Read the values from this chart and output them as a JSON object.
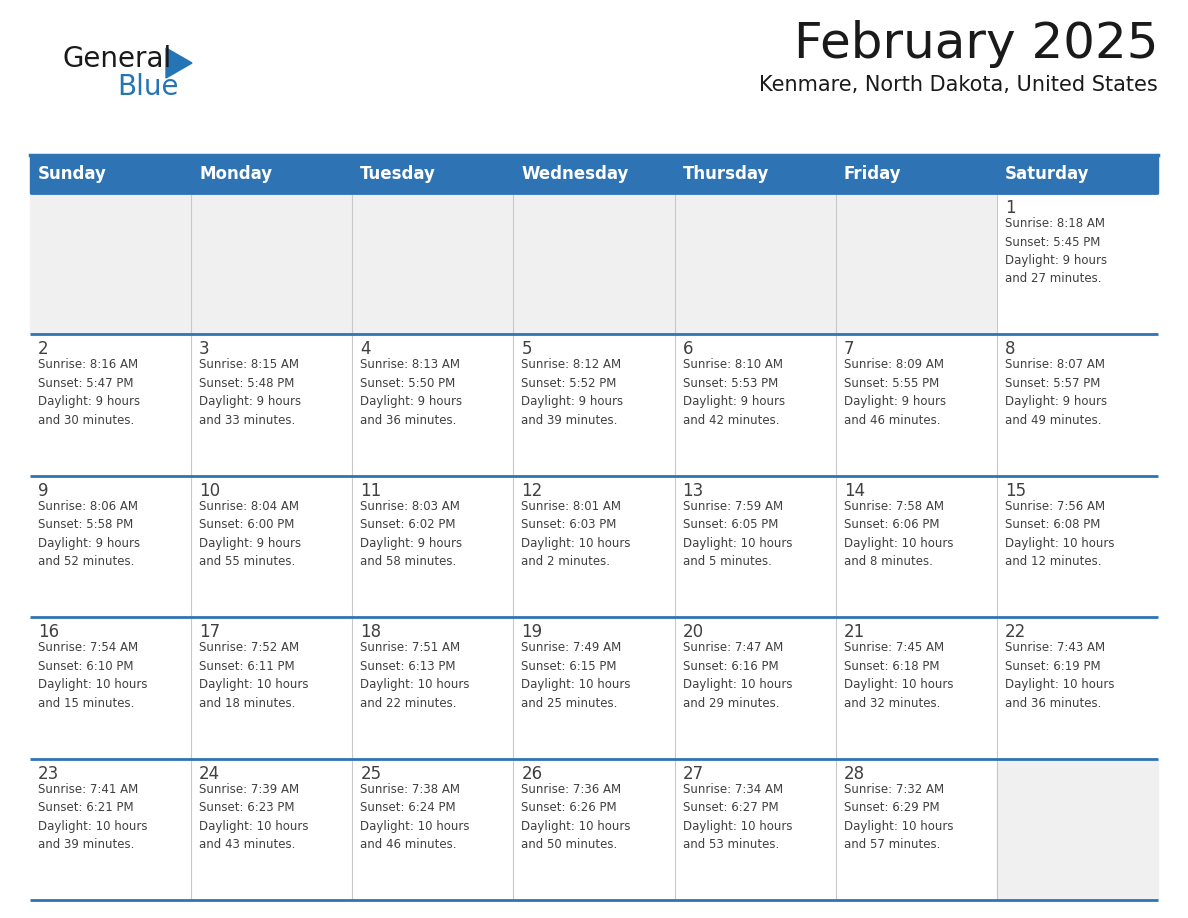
{
  "title": "February 2025",
  "subtitle": "Kenmare, North Dakota, United States",
  "header_bg": "#2e74b5",
  "header_text": "#ffffff",
  "row_bg_light": "#f0f0f0",
  "row_bg_white": "#ffffff",
  "border_color": "#2e74b5",
  "text_color": "#404040",
  "day_headers": [
    "Sunday",
    "Monday",
    "Tuesday",
    "Wednesday",
    "Thursday",
    "Friday",
    "Saturday"
  ],
  "calendar_data": [
    [
      {
        "day": "",
        "info": ""
      },
      {
        "day": "",
        "info": ""
      },
      {
        "day": "",
        "info": ""
      },
      {
        "day": "",
        "info": ""
      },
      {
        "day": "",
        "info": ""
      },
      {
        "day": "",
        "info": ""
      },
      {
        "day": "1",
        "info": "Sunrise: 8:18 AM\nSunset: 5:45 PM\nDaylight: 9 hours\nand 27 minutes."
      }
    ],
    [
      {
        "day": "2",
        "info": "Sunrise: 8:16 AM\nSunset: 5:47 PM\nDaylight: 9 hours\nand 30 minutes."
      },
      {
        "day": "3",
        "info": "Sunrise: 8:15 AM\nSunset: 5:48 PM\nDaylight: 9 hours\nand 33 minutes."
      },
      {
        "day": "4",
        "info": "Sunrise: 8:13 AM\nSunset: 5:50 PM\nDaylight: 9 hours\nand 36 minutes."
      },
      {
        "day": "5",
        "info": "Sunrise: 8:12 AM\nSunset: 5:52 PM\nDaylight: 9 hours\nand 39 minutes."
      },
      {
        "day": "6",
        "info": "Sunrise: 8:10 AM\nSunset: 5:53 PM\nDaylight: 9 hours\nand 42 minutes."
      },
      {
        "day": "7",
        "info": "Sunrise: 8:09 AM\nSunset: 5:55 PM\nDaylight: 9 hours\nand 46 minutes."
      },
      {
        "day": "8",
        "info": "Sunrise: 8:07 AM\nSunset: 5:57 PM\nDaylight: 9 hours\nand 49 minutes."
      }
    ],
    [
      {
        "day": "9",
        "info": "Sunrise: 8:06 AM\nSunset: 5:58 PM\nDaylight: 9 hours\nand 52 minutes."
      },
      {
        "day": "10",
        "info": "Sunrise: 8:04 AM\nSunset: 6:00 PM\nDaylight: 9 hours\nand 55 minutes."
      },
      {
        "day": "11",
        "info": "Sunrise: 8:03 AM\nSunset: 6:02 PM\nDaylight: 9 hours\nand 58 minutes."
      },
      {
        "day": "12",
        "info": "Sunrise: 8:01 AM\nSunset: 6:03 PM\nDaylight: 10 hours\nand 2 minutes."
      },
      {
        "day": "13",
        "info": "Sunrise: 7:59 AM\nSunset: 6:05 PM\nDaylight: 10 hours\nand 5 minutes."
      },
      {
        "day": "14",
        "info": "Sunrise: 7:58 AM\nSunset: 6:06 PM\nDaylight: 10 hours\nand 8 minutes."
      },
      {
        "day": "15",
        "info": "Sunrise: 7:56 AM\nSunset: 6:08 PM\nDaylight: 10 hours\nand 12 minutes."
      }
    ],
    [
      {
        "day": "16",
        "info": "Sunrise: 7:54 AM\nSunset: 6:10 PM\nDaylight: 10 hours\nand 15 minutes."
      },
      {
        "day": "17",
        "info": "Sunrise: 7:52 AM\nSunset: 6:11 PM\nDaylight: 10 hours\nand 18 minutes."
      },
      {
        "day": "18",
        "info": "Sunrise: 7:51 AM\nSunset: 6:13 PM\nDaylight: 10 hours\nand 22 minutes."
      },
      {
        "day": "19",
        "info": "Sunrise: 7:49 AM\nSunset: 6:15 PM\nDaylight: 10 hours\nand 25 minutes."
      },
      {
        "day": "20",
        "info": "Sunrise: 7:47 AM\nSunset: 6:16 PM\nDaylight: 10 hours\nand 29 minutes."
      },
      {
        "day": "21",
        "info": "Sunrise: 7:45 AM\nSunset: 6:18 PM\nDaylight: 10 hours\nand 32 minutes."
      },
      {
        "day": "22",
        "info": "Sunrise: 7:43 AM\nSunset: 6:19 PM\nDaylight: 10 hours\nand 36 minutes."
      }
    ],
    [
      {
        "day": "23",
        "info": "Sunrise: 7:41 AM\nSunset: 6:21 PM\nDaylight: 10 hours\nand 39 minutes."
      },
      {
        "day": "24",
        "info": "Sunrise: 7:39 AM\nSunset: 6:23 PM\nDaylight: 10 hours\nand 43 minutes."
      },
      {
        "day": "25",
        "info": "Sunrise: 7:38 AM\nSunset: 6:24 PM\nDaylight: 10 hours\nand 46 minutes."
      },
      {
        "day": "26",
        "info": "Sunrise: 7:36 AM\nSunset: 6:26 PM\nDaylight: 10 hours\nand 50 minutes."
      },
      {
        "day": "27",
        "info": "Sunrise: 7:34 AM\nSunset: 6:27 PM\nDaylight: 10 hours\nand 53 minutes."
      },
      {
        "day": "28",
        "info": "Sunrise: 7:32 AM\nSunset: 6:29 PM\nDaylight: 10 hours\nand 57 minutes."
      },
      {
        "day": "",
        "info": ""
      }
    ]
  ],
  "logo_color_general": "#1a1a1a",
  "logo_color_blue": "#2574b5",
  "logo_triangle_color": "#2574b5",
  "title_fontsize": 36,
  "subtitle_fontsize": 15,
  "header_fontsize": 12,
  "day_num_fontsize": 12,
  "info_fontsize": 8.5
}
